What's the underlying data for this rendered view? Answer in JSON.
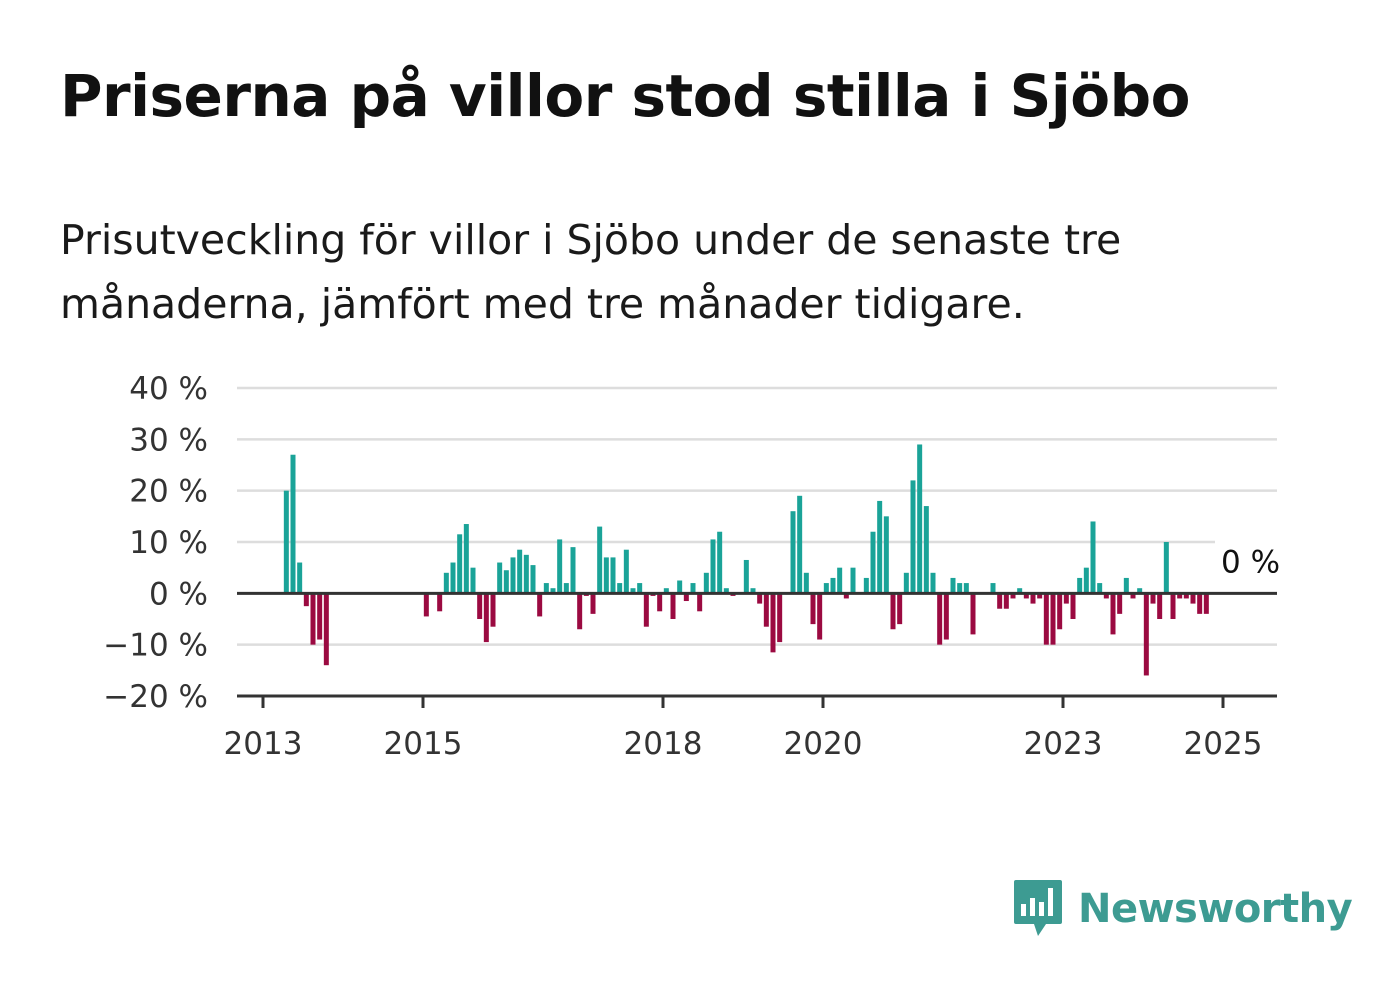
{
  "title": "Priserna på villor stod stilla i Sjöbo",
  "subtitle": "Prisutveckling för villor i Sjöbo under de senaste tre månaderna, jämfört med tre månader tidigare.",
  "brand": {
    "name": "Newsworthy",
    "color": "#3d9b92",
    "icon": "bar-chart-speech-bubble-icon"
  },
  "colors": {
    "positive": "#1aa398",
    "negative": "#9b0a41",
    "grid": "#dddddd",
    "axis": "#333333"
  },
  "chart_data": {
    "type": "bar",
    "x_start": "2013-01",
    "interval": "month",
    "ylim": [
      -20,
      40
    ],
    "yticks": [
      -20,
      -10,
      0,
      10,
      20,
      30,
      40
    ],
    "ytick_labels": [
      "−20 %",
      "−10 %",
      "0 %",
      "10 %",
      "20 %",
      "30 %",
      "40 %"
    ],
    "xticks": [
      "2013",
      "2015",
      "2018",
      "2020",
      "2023",
      "2025"
    ],
    "grid": true,
    "legend": "none",
    "end_label": "0 %",
    "values": [
      null,
      null,
      null,
      20,
      27,
      6,
      -2.5,
      -10,
      -9,
      -14,
      null,
      null,
      null,
      null,
      null,
      null,
      null,
      null,
      null,
      null,
      null,
      null,
      null,
      null,
      -4.5,
      0,
      -3.5,
      4,
      6,
      11.5,
      13.5,
      5,
      -5,
      -9.5,
      -6.5,
      6,
      4.5,
      7,
      8.5,
      7.5,
      5.5,
      -4.5,
      2,
      1,
      10.5,
      2,
      9,
      -7,
      -0.5,
      -4,
      13,
      7,
      7,
      2,
      8.5,
      1,
      2,
      -6.5,
      -0.5,
      -3.5,
      1,
      -5,
      2.5,
      -1.5,
      2,
      -3.5,
      4,
      10.5,
      12,
      1,
      -0.5,
      0,
      6.5,
      1,
      -2,
      -6.5,
      -11.5,
      -9.5,
      0,
      16,
      19,
      4,
      -6,
      -9,
      2,
      3,
      5,
      -1,
      5,
      0,
      3,
      12,
      18,
      15,
      -7,
      -6,
      4,
      22,
      29,
      17,
      4,
      -10,
      -9,
      3,
      2,
      2,
      -8,
      0,
      0,
      2,
      -3,
      -3,
      -1,
      1,
      -1,
      -2,
      -1,
      -10,
      -10,
      -7,
      -2,
      -5,
      3,
      5,
      14,
      2,
      -1,
      -8,
      -4,
      3,
      -1,
      1,
      -16,
      -2,
      -5,
      10,
      -5,
      -1,
      -1,
      -2,
      -4,
      -4,
      0
    ]
  }
}
